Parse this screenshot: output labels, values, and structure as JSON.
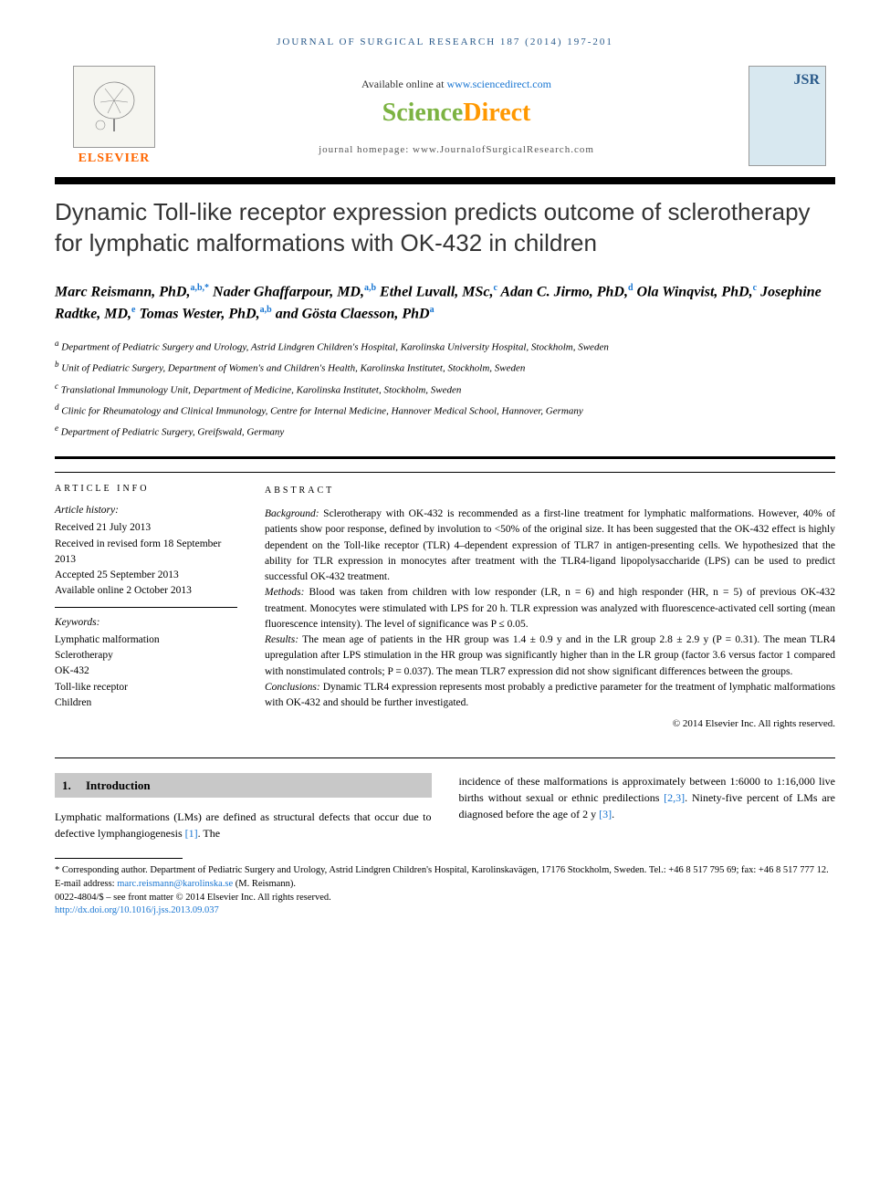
{
  "running_head": "JOURNAL OF SURGICAL RESEARCH 187 (2014) 197-201",
  "header": {
    "available_text": "Available online at ",
    "available_link": "www.sciencedirect.com",
    "sciencedirect_science": "Science",
    "sciencedirect_direct": "Direct",
    "homepage_text": "journal homepage: www.JournalofSurgicalResearch.com",
    "elsevier_label": "ELSEVIER",
    "jsr_label": "JSR"
  },
  "title": "Dynamic Toll-like receptor expression predicts outcome of sclerotherapy for lymphatic malformations with OK-432 in children",
  "authors_html": "Marc Reismann, PhD,<sup>a,b,*</sup> Nader Ghaffarpour, MD,<sup>a,b</sup> Ethel Luvall, MSc,<sup>c</sup> Adan C. Jirmo, PhD,<sup>d</sup> Ola Winqvist, PhD,<sup>c</sup> Josephine Radtke, MD,<sup>e</sup> Tomas Wester, PhD,<sup>a,b</sup> and Gösta Claesson, PhD<sup>a</sup>",
  "affiliations": [
    {
      "sup": "a",
      "text": "Department of Pediatric Surgery and Urology, Astrid Lindgren Children's Hospital, Karolinska University Hospital, Stockholm, Sweden"
    },
    {
      "sup": "b",
      "text": "Unit of Pediatric Surgery, Department of Women's and Children's Health, Karolinska Institutet, Stockholm, Sweden"
    },
    {
      "sup": "c",
      "text": "Translational Immunology Unit, Department of Medicine, Karolinska Institutet, Stockholm, Sweden"
    },
    {
      "sup": "d",
      "text": "Clinic for Rheumatology and Clinical Immunology, Centre for Internal Medicine, Hannover Medical School, Hannover, Germany"
    },
    {
      "sup": "e",
      "text": "Department of Pediatric Surgery, Greifswald, Germany"
    }
  ],
  "article_info": {
    "heading": "ARTICLE INFO",
    "history_label": "Article history:",
    "received": "Received 21 July 2013",
    "revised": "Received in revised form 18 September 2013",
    "accepted": "Accepted 25 September 2013",
    "online": "Available online 2 October 2013",
    "keywords_label": "Keywords:",
    "keywords": [
      "Lymphatic malformation",
      "Sclerotherapy",
      "OK-432",
      "Toll-like receptor",
      "Children"
    ]
  },
  "abstract": {
    "heading": "ABSTRACT",
    "background_label": "Background:",
    "background": " Sclerotherapy with OK-432 is recommended as a first-line treatment for lymphatic malformations. However, 40% of patients show poor response, defined by involution to <50% of the original size. It has been suggested that the OK-432 effect is highly dependent on the Toll-like receptor (TLR) 4–dependent expression of TLR7 in antigen-presenting cells. We hypothesized that the ability for TLR expression in monocytes after treatment with the TLR4-ligand lipopolysaccharide (LPS) can be used to predict successful OK-432 treatment.",
    "methods_label": "Methods:",
    "methods": " Blood was taken from children with low responder (LR, n = 6) and high responder (HR, n = 5) of previous OK-432 treatment. Monocytes were stimulated with LPS for 20 h. TLR expression was analyzed with fluorescence-activated cell sorting (mean fluorescence intensity). The level of significance was P ≤ 0.05.",
    "results_label": "Results:",
    "results": " The mean age of patients in the HR group was 1.4 ± 0.9 y and in the LR group 2.8 ± 2.9 y (P = 0.31). The mean TLR4 upregulation after LPS stimulation in the HR group was significantly higher than in the LR group (factor 3.6 versus factor 1 compared with nonstimulated controls; P = 0.037). The mean TLR7 expression did not show significant differences between the groups.",
    "conclusions_label": "Conclusions:",
    "conclusions": " Dynamic TLR4 expression represents most probably a predictive parameter for the treatment of lymphatic malformations with OK-432 and should be further investigated.",
    "copyright": "© 2014 Elsevier Inc. All rights reserved."
  },
  "body": {
    "section_number": "1.",
    "section_title": "Introduction",
    "col1": "Lymphatic malformations (LMs) are defined as structural defects that occur due to defective lymphangiogenesis ",
    "col1_ref": "[1]",
    "col1_tail": ". The",
    "col2_a": "incidence of these malformations is approximately between 1:6000 to 1:16,000 live births without sexual or ethnic predilections ",
    "col2_ref1": "[2,3]",
    "col2_b": ". Ninety-five percent of LMs are diagnosed before the age of 2 y ",
    "col2_ref2": "[3]",
    "col2_c": "."
  },
  "footnotes": {
    "corresponding": "* Corresponding author. Department of Pediatric Surgery and Urology, Astrid Lindgren Children's Hospital, Karolinskavägen, 17176 Stockholm, Sweden. Tel.: +46 8 517 795 69; fax: +46 8 517 777 12.",
    "email_label": "E-mail address: ",
    "email": "marc.reismann@karolinska.se",
    "email_tail": " (M. Reismann).",
    "issn": "0022-4804/$ – see front matter © 2014 Elsevier Inc. All rights reserved.",
    "doi": "http://dx.doi.org/10.1016/j.jss.2013.09.037"
  },
  "colors": {
    "link": "#1976d2",
    "elsevier_orange": "#ff6600",
    "sd_green": "#7cb342",
    "sd_orange": "#ff9800",
    "heading_bg": "#c8c8c8",
    "running_head": "#2a5a8a"
  }
}
